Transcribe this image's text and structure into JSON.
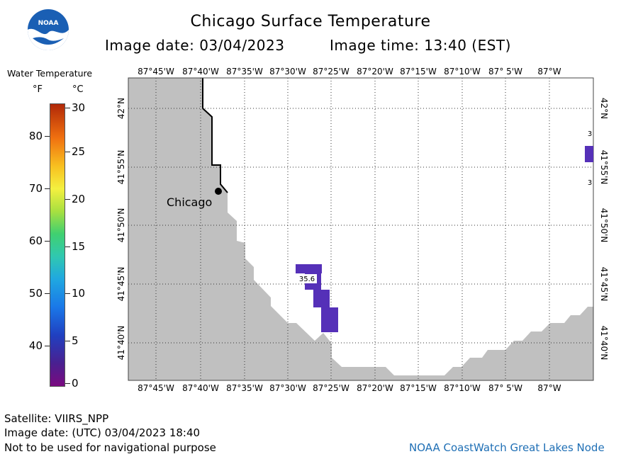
{
  "header": {
    "title": "Chicago Surface Temperature",
    "image_date": "Image date: 03/04/2023",
    "image_time": "Image time: 13:40 (EST)"
  },
  "logo": {
    "name": "NOAA",
    "text": "NOAA"
  },
  "legend": {
    "title": "Water Temperature",
    "unit_f": "°F",
    "unit_c": "°C",
    "f_labels": [
      "80",
      "70",
      "60",
      "50",
      "40"
    ],
    "c_labels": [
      "30",
      "25",
      "20",
      "15",
      "10",
      "5",
      "0"
    ]
  },
  "map": {
    "top_lon_labels": [
      "87°45'W",
      "87°40'W",
      "87°35'W",
      "87°30'W",
      "87°25'W",
      "87°20'W",
      "87°15'W",
      "87°10'W",
      "87° 5'W",
      "87°W"
    ],
    "bottom_lon_labels": [
      "87°45'W",
      "87°40'W",
      "87°35'W",
      "87°30'W",
      "87°25'W",
      "87°20'W",
      "87°15'W",
      "87°10'W",
      "87° 5'W",
      "87°W"
    ],
    "lat_labels": [
      "42°N",
      "41°55'N",
      "41°50'N",
      "41°45'N",
      "41°40'N"
    ],
    "city": "Chicago",
    "value_label": "35.6",
    "edge_label_top": "3",
    "edge_label_bottom": "3",
    "land_color": "#c0c0c0",
    "water_color": "#ffffff",
    "pixel_color": "#5530b8"
  },
  "footer": {
    "satellite": "Satellite: VIIRS_NPP",
    "utc_date": "Image date: (UTC) 03/04/2023  18:40",
    "disclaimer": "Not to be used for navigational purpose",
    "credit": "NOAA CoastWatch Great Lakes Node"
  }
}
